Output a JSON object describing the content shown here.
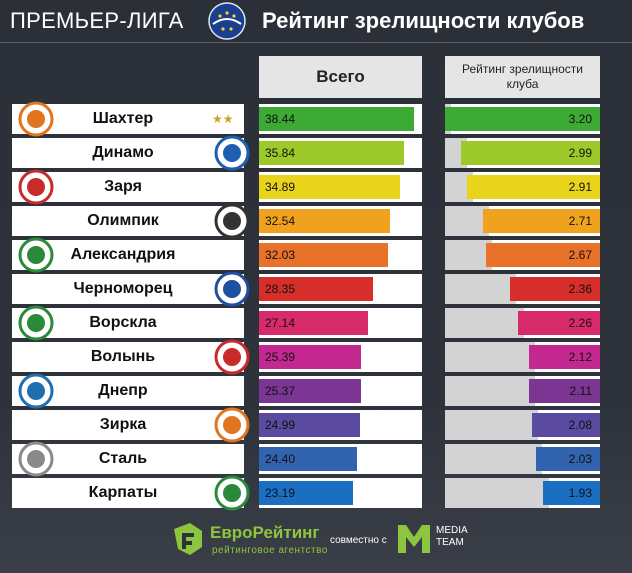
{
  "header": {
    "league": "ПРЕМЬЕР-ЛИГА",
    "title": "Рейтинг зрелищности клубов"
  },
  "columns": {
    "total": "Всего",
    "rating": "Рейтинг зрелищности клуба"
  },
  "footer": {
    "brand": "ЕвроРейтинг",
    "brand_sub": "рейтинговое агентство",
    "together": "совместно с",
    "partner": "MEDIA TEAM"
  },
  "chart_data": {
    "type": "bar",
    "categories": [
      "Шахтер",
      "Динамо",
      "Заря",
      "Олимпик",
      "Александрия",
      "Черноморец",
      "Ворскла",
      "Волынь",
      "Днепр",
      "Зирка",
      "Сталь",
      "Карпаты"
    ],
    "series": [
      {
        "name": "Всего",
        "values": [
          38.44,
          35.84,
          34.89,
          32.54,
          32.03,
          28.35,
          27.14,
          25.39,
          25.37,
          24.99,
          24.4,
          23.19
        ],
        "labels": [
          "38.44",
          "35.84",
          "34.89",
          "32.54",
          "32.03",
          "28.35",
          "27.14",
          "25.39",
          "25.37",
          "24.99",
          "24.40",
          "23.19"
        ]
      },
      {
        "name": "Рейтинг зрелищности клуба",
        "values": [
          3.2,
          2.99,
          2.91,
          2.71,
          2.67,
          2.36,
          2.26,
          2.12,
          2.11,
          2.08,
          2.03,
          1.93
        ],
        "labels": [
          "3.20",
          "2.99",
          "2.91",
          "2.71",
          "2.67",
          "2.36",
          "2.26",
          "2.12",
          "2.11",
          "2.08",
          "2.03",
          "1.93"
        ]
      }
    ],
    "colors": [
      "#3daa35",
      "#9ec92a",
      "#e8d41a",
      "#f0a21f",
      "#e8722a",
      "#d62e2a",
      "#d8296a",
      "#c2288f",
      "#7b3593",
      "#5a4aa0",
      "#3263ae",
      "#1a6fc2"
    ]
  }
}
